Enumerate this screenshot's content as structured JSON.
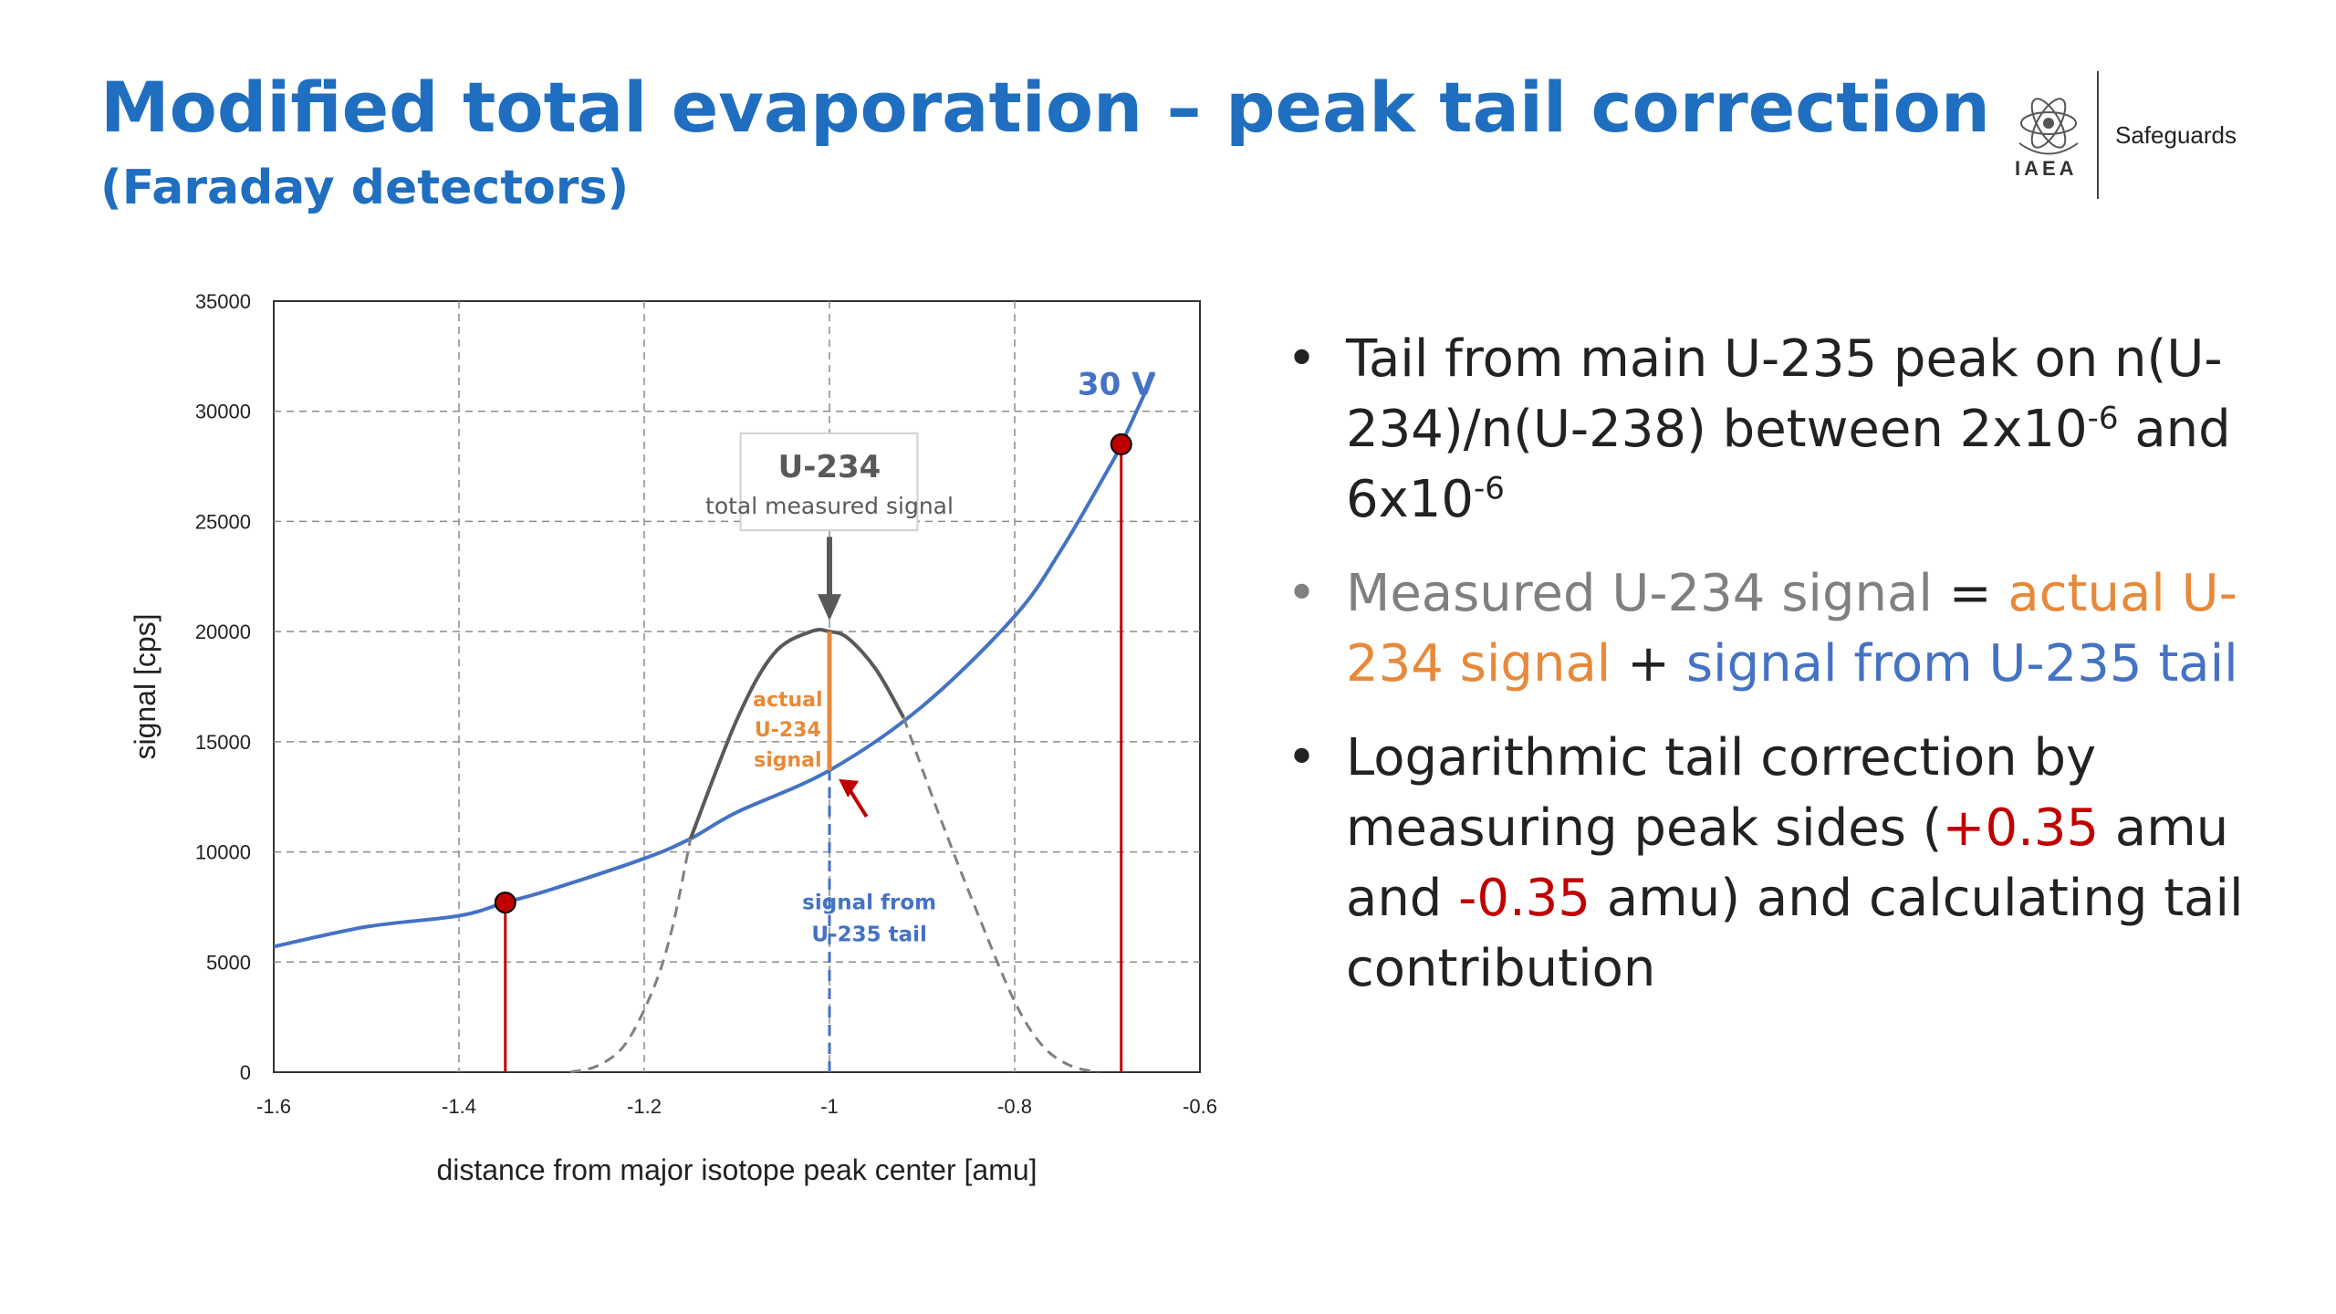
{
  "header": {
    "title": "Modified total evaporation – peak tail correction",
    "subtitle": "(Faraday detectors)",
    "logo_text": "IAEA",
    "section": "Safeguards"
  },
  "chart_data": {
    "type": "line",
    "xlabel": "distance from major isotope peak center [amu]",
    "ylabel": "signal [cps]",
    "xlim": [
      -1.6,
      -0.6
    ],
    "ylim": [
      0,
      35000
    ],
    "x_ticks": [
      "-1.6",
      "-1.4",
      "-1.2",
      "-1",
      "-0.8",
      "-0.6"
    ],
    "y_ticks": [
      "0",
      "5000",
      "10000",
      "15000",
      "20000",
      "25000",
      "30000",
      "35000"
    ],
    "grid": true,
    "series": [
      {
        "name": "",
        "color": "#4472c4",
        "style": "solid",
        "x": [
          -1.6,
          -1.5,
          -1.4,
          -1.35,
          -1.3,
          -1.2,
          -1.15,
          -1.1,
          -1.0,
          -0.9,
          -0.8,
          -0.75,
          -0.7,
          -0.685,
          -0.65
        ],
        "y": [
          5700,
          6600,
          7100,
          7700,
          8300,
          9700,
          10600,
          11800,
          13700,
          16600,
          20700,
          23700,
          27300,
          28500,
          31700
        ]
      },
      {
        "name": "",
        "color": "#595959",
        "style": "solid",
        "x": [
          -1.15,
          -1.1,
          -1.06,
          -1.02,
          -1.0,
          -0.98,
          -0.95,
          -0.92
        ],
        "y": [
          10600,
          16000,
          19000,
          20000,
          20000,
          19700,
          18300,
          16100
        ]
      },
      {
        "name": "",
        "color": "#808080",
        "style": "dashed",
        "x": [
          -1.28,
          -1.25,
          -1.22,
          -1.19,
          -1.17,
          -1.15
        ],
        "y": [
          0,
          300,
          1300,
          3800,
          6500,
          10600
        ]
      },
      {
        "name": "",
        "color": "#808080",
        "style": "dashed",
        "x": [
          -0.92,
          -0.88,
          -0.84,
          -0.8,
          -0.77,
          -0.74,
          -0.71
        ],
        "y": [
          16100,
          11500,
          7200,
          3200,
          1200,
          300,
          0
        ]
      }
    ],
    "markers": [
      {
        "x": -1.35,
        "y": 7700,
        "color": "#c00000"
      },
      {
        "x": -0.685,
        "y": 28500,
        "color": "#c00000"
      }
    ],
    "vertical_lines": [
      {
        "x": -1.35,
        "y_from": 0,
        "y_to": 7700,
        "color": "#c00000",
        "style": "solid"
      },
      {
        "x": -0.685,
        "y_from": 0,
        "y_to": 28500,
        "color": "#c00000",
        "style": "solid"
      },
      {
        "x": -1.0,
        "y_from": 13700,
        "y_to": 20000,
        "color": "#e8893a",
        "style": "solid"
      },
      {
        "x": -1.0,
        "y_from": 0,
        "y_to": 13700,
        "color": "#4472c4",
        "style": "dashed"
      }
    ],
    "annotations": {
      "curve_label": "30 V",
      "box_title": "U-234",
      "box_subtitle": "total measured signal",
      "actual_lines": [
        "actual",
        "U-234",
        "signal"
      ],
      "tail_lines": [
        "signal from",
        "U-235 tail"
      ]
    }
  },
  "bullets": {
    "b1_text": "Tail from main U-235 peak on n(U-234)/n(U-238) between 2x10",
    "b1_sup1": "-6",
    "b1_mid": " and 6x10",
    "b1_sup2": "-6",
    "b2_prefix": "Measured U-234 signal ",
    "b2_eq": "=",
    "b2_actual": " actual U-234 signal",
    "b2_plus": " + ",
    "b2_tail": "signal from U-235 tail",
    "b3_a": "Logarithmic tail correction by measuring peak sides (",
    "b3_plus": "+0.35",
    "b3_b": " amu and ",
    "b3_minus": "-0.35",
    "b3_c": " amu) and calculating tail contribution",
    "dot": "•"
  }
}
